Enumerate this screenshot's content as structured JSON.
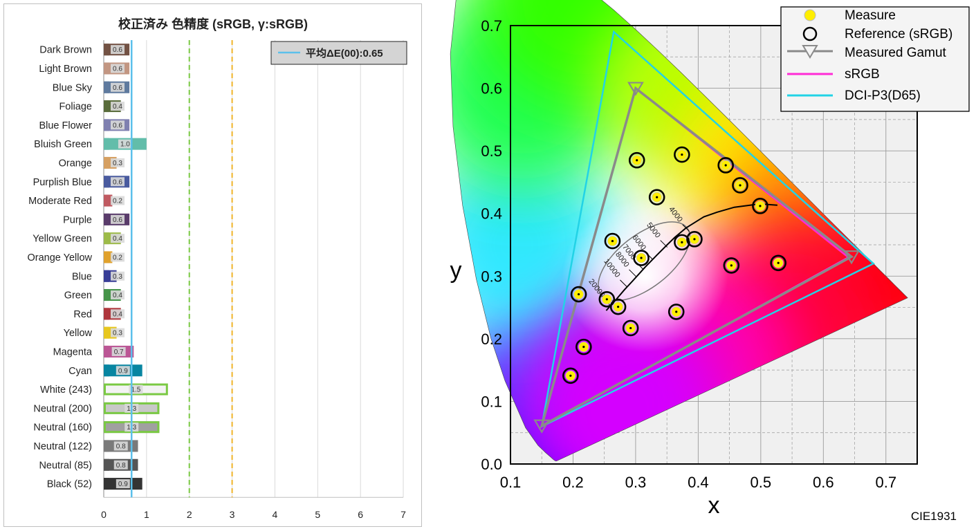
{
  "left_chart": {
    "title": "校正済み 色精度 (sRGB, γ:sRGB)",
    "legend_label": "平均ΔE(00):0.65",
    "chart_data": {
      "type": "bar",
      "orientation": "horizontal",
      "categories": [
        "Dark Brown",
        "Light Brown",
        "Blue Sky",
        "Foliage",
        "Blue Flower",
        "Bluish Green",
        "Orange",
        "Purplish Blue",
        "Moderate Red",
        "Purple",
        "Yellow Green",
        "Orange Yellow",
        "Blue",
        "Green",
        "Red",
        "Yellow",
        "Magenta",
        "Cyan",
        "White (243)",
        "Neutral (200)",
        "Neutral (160)",
        "Neutral (122)",
        "Neutral (85)",
        "Black (52)"
      ],
      "values": [
        0.6,
        0.6,
        0.6,
        0.4,
        0.6,
        1.0,
        0.3,
        0.6,
        0.2,
        0.6,
        0.4,
        0.2,
        0.3,
        0.4,
        0.4,
        0.3,
        0.7,
        0.9,
        1.5,
        1.3,
        1.3,
        0.8,
        0.8,
        0.9
      ],
      "value_labels": [
        "0.6",
        "0.6",
        "0.6",
        "0.4",
        "0.6",
        "1.0",
        "0.3",
        "0.6",
        "0.2",
        "0.6",
        "0.4",
        "0.2",
        "0.3",
        "0.4",
        "0.4",
        "0.3",
        "0.7",
        "0.9",
        "1.5",
        "1.3",
        "1.3",
        "0.8",
        "0.8",
        "0.9"
      ],
      "measured_colors": [
        "#735244",
        "#c29682",
        "#5f7a9e",
        "#596c3b",
        "#7f80b0",
        "#62bdaa",
        "#d6a062",
        "#4a5b9f",
        "#c05a61",
        "#5a3c6b",
        "#9dbb49",
        "#e0a12c",
        "#383d96",
        "#469449",
        "#af363c",
        "#e7c71f",
        "#bb5695",
        "#0885a1",
        "#f3f3f3",
        "#c8c8c8",
        "#a0a0a0",
        "#7a7a7a",
        "#555555",
        "#343434"
      ],
      "reference_colors": [
        "#735244",
        "#c29682",
        "#5f7a9e",
        "#596c3b",
        "#7f80b0",
        "#62bdaa",
        "#d6a062",
        "#4a5b9f",
        "#c05a61",
        "#5a3c6b",
        "#9dbb49",
        "#e0a12c",
        "#383d96",
        "#469449",
        "#af363c",
        "#e7c71f",
        "#bb5695",
        "#0885a1",
        "#f3f3f3",
        "#c8c8c8",
        "#a0a0a0",
        "#7a7a7a",
        "#555555",
        "#343434"
      ],
      "highlighted": [
        18,
        19,
        20
      ],
      "average": 0.65,
      "threshold_lines": [
        {
          "value": 2,
          "color": "#7ac943",
          "style": "dashed"
        },
        {
          "value": 3,
          "color": "#f0b429",
          "style": "dashed"
        }
      ],
      "xlim": [
        0,
        7
      ],
      "xticks": [
        0,
        1,
        2,
        3,
        4,
        5,
        6,
        7
      ],
      "grid": true,
      "legend_position": "top-right"
    }
  },
  "right_chart": {
    "corner_label": "CIE1931",
    "chart_data": {
      "type": "scatter",
      "xlabel": "x",
      "ylabel": "y",
      "xlim": [
        0.1,
        0.75
      ],
      "ylim": [
        0.0,
        0.7
      ],
      "xticks": [
        "0.1",
        "0.2",
        "0.3",
        "0.4",
        "0.5",
        "0.6",
        "0.7"
      ],
      "yticks": [
        "0.0",
        "0.1",
        "0.2",
        "0.3",
        "0.4",
        "0.5",
        "0.6",
        "0.7"
      ],
      "grid": true,
      "legend_position": "top-right",
      "legend": [
        {
          "label": "Measure",
          "marker": "yellow-dot"
        },
        {
          "label": "Reference (sRGB)",
          "marker": "black-ring"
        },
        {
          "label": "Measured Gamut",
          "marker": "gray-triangle-line"
        },
        {
          "label": "sRGB",
          "marker": "magenta-line"
        },
        {
          "label": "DCI-P3(D65)",
          "marker": "cyan-line"
        }
      ],
      "measured_points": [
        [
          0.302,
          0.485
        ],
        [
          0.374,
          0.494
        ],
        [
          0.444,
          0.477
        ],
        [
          0.467,
          0.445
        ],
        [
          0.334,
          0.426
        ],
        [
          0.499,
          0.412
        ],
        [
          0.263,
          0.356
        ],
        [
          0.309,
          0.329
        ],
        [
          0.374,
          0.354
        ],
        [
          0.394,
          0.359
        ],
        [
          0.453,
          0.317
        ],
        [
          0.528,
          0.321
        ],
        [
          0.209,
          0.271
        ],
        [
          0.254,
          0.263
        ],
        [
          0.272,
          0.251
        ],
        [
          0.365,
          0.243
        ],
        [
          0.292,
          0.217
        ],
        [
          0.217,
          0.187
        ],
        [
          0.196,
          0.141
        ]
      ],
      "reference_points": [
        [
          0.302,
          0.485
        ],
        [
          0.374,
          0.494
        ],
        [
          0.444,
          0.477
        ],
        [
          0.467,
          0.445
        ],
        [
          0.334,
          0.426
        ],
        [
          0.499,
          0.412
        ],
        [
          0.263,
          0.356
        ],
        [
          0.309,
          0.329
        ],
        [
          0.374,
          0.354
        ],
        [
          0.394,
          0.359
        ],
        [
          0.453,
          0.317
        ],
        [
          0.528,
          0.321
        ],
        [
          0.209,
          0.271
        ],
        [
          0.254,
          0.263
        ],
        [
          0.272,
          0.251
        ],
        [
          0.365,
          0.243
        ],
        [
          0.292,
          0.217
        ],
        [
          0.217,
          0.187
        ],
        [
          0.196,
          0.141
        ]
      ],
      "measured_gamut": [
        [
          0.645,
          0.331
        ],
        [
          0.3,
          0.6
        ],
        [
          0.15,
          0.061
        ]
      ],
      "srgb_gamut": [
        [
          0.64,
          0.33
        ],
        [
          0.3,
          0.6
        ],
        [
          0.15,
          0.06
        ]
      ],
      "dcip3_gamut": [
        [
          0.68,
          0.32
        ],
        [
          0.265,
          0.69
        ],
        [
          0.15,
          0.06
        ]
      ],
      "planckian_locus": [
        [
          0.5266,
          0.4133
        ],
        [
          0.4985,
          0.4153
        ],
        [
          0.4577,
          0.41
        ],
        [
          0.43,
          0.402
        ],
        [
          0.4091,
          0.3947
        ],
        [
          0.3805,
          0.3768
        ],
        [
          0.3624,
          0.3617
        ],
        [
          0.3498,
          0.3494
        ],
        [
          0.3334,
          0.333
        ],
        [
          0.3149,
          0.314
        ],
        [
          0.305,
          0.303
        ],
        [
          0.295,
          0.292
        ],
        [
          0.282,
          0.278
        ],
        [
          0.27,
          0.264
        ],
        [
          0.261,
          0.254
        ],
        [
          0.253,
          0.245
        ]
      ],
      "cct_labels": [
        "4000",
        "5000",
        "6000",
        "7000",
        "8000",
        "10000",
        "20000"
      ],
      "cct_label_positions": [
        [
          0.3805,
          0.3768
        ],
        [
          0.3451,
          0.3516
        ],
        [
          0.3221,
          0.3318
        ],
        [
          0.3064,
          0.3166
        ],
        [
          0.2952,
          0.3048
        ],
        [
          0.2807,
          0.2883
        ],
        [
          0.2565,
          0.2562
        ]
      ],
      "daylight_ellipse": {
        "center": [
          0.3135,
          0.3237
        ],
        "rx": 0.087,
        "ry": 0.042,
        "angle": 38
      }
    }
  }
}
